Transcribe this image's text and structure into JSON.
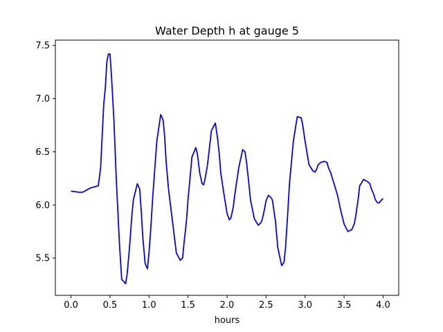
{
  "chart_data": {
    "type": "line",
    "title": "Water Depth h at gauge 5",
    "xlabel": "hours",
    "ylabel": "",
    "xlim": [
      -0.2,
      4.2
    ],
    "ylim": [
      5.15,
      7.55
    ],
    "grid": false,
    "x_ticks": [
      0.0,
      0.5,
      1.0,
      1.5,
      2.0,
      2.5,
      3.0,
      3.5,
      4.0
    ],
    "x_tick_labels": [
      "0.0",
      "0.5",
      "1.0",
      "1.5",
      "2.0",
      "2.5",
      "3.0",
      "3.5",
      "4.0"
    ],
    "y_ticks": [
      5.5,
      6.0,
      6.5,
      7.0,
      7.5
    ],
    "y_tick_labels": [
      "5.5",
      "6.0",
      "6.5",
      "7.0",
      "7.5"
    ],
    "series": [
      {
        "color": "#0000ff",
        "x": [
          0.0,
          0.05,
          0.1,
          0.15,
          0.2,
          0.25,
          0.3,
          0.35,
          0.38,
          0.42,
          0.44,
          0.46,
          0.48,
          0.5,
          0.52,
          0.55,
          0.58,
          0.62,
          0.65,
          0.7,
          0.72,
          0.75,
          0.78,
          0.8,
          0.85,
          0.88,
          0.9,
          0.92,
          0.95,
          0.98,
          1.0,
          1.02,
          1.05,
          1.1,
          1.15,
          1.18,
          1.2,
          1.22,
          1.25,
          1.3,
          1.35,
          1.4,
          1.43,
          1.45,
          1.48,
          1.5,
          1.55,
          1.6,
          1.62,
          1.65,
          1.68,
          1.7,
          1.72,
          1.75,
          1.8,
          1.85,
          1.88,
          1.9,
          1.92,
          1.95,
          2.0,
          2.03,
          2.05,
          2.08,
          2.1,
          2.15,
          2.2,
          2.23,
          2.25,
          2.28,
          2.3,
          2.35,
          2.4,
          2.43,
          2.45,
          2.48,
          2.5,
          2.53,
          2.55,
          2.58,
          2.6,
          2.62,
          2.65,
          2.7,
          2.73,
          2.75,
          2.78,
          2.8,
          2.85,
          2.9,
          2.95,
          2.97,
          3.0,
          3.05,
          3.1,
          3.13,
          3.15,
          3.17,
          3.2,
          3.25,
          3.28,
          3.3,
          3.33,
          3.35,
          3.38,
          3.42,
          3.45,
          3.5,
          3.55,
          3.6,
          3.63,
          3.65,
          3.68,
          3.7,
          3.75,
          3.8,
          3.83,
          3.85,
          3.88,
          3.9,
          3.93,
          3.95,
          3.97,
          4.0
        ],
        "values": [
          6.13,
          6.125,
          6.12,
          6.12,
          6.14,
          6.16,
          6.17,
          6.18,
          6.35,
          6.95,
          7.1,
          7.35,
          7.42,
          7.42,
          7.2,
          6.8,
          6.25,
          5.65,
          5.3,
          5.26,
          5.35,
          5.6,
          5.9,
          6.05,
          6.2,
          6.15,
          5.95,
          5.7,
          5.45,
          5.4,
          5.55,
          5.75,
          6.1,
          6.6,
          6.85,
          6.8,
          6.65,
          6.4,
          6.15,
          5.85,
          5.55,
          5.48,
          5.5,
          5.65,
          5.85,
          6.05,
          6.45,
          6.54,
          6.48,
          6.3,
          6.2,
          6.19,
          6.25,
          6.38,
          6.7,
          6.77,
          6.62,
          6.48,
          6.3,
          6.15,
          5.92,
          5.86,
          5.88,
          5.98,
          6.1,
          6.35,
          6.52,
          6.5,
          6.4,
          6.2,
          6.05,
          5.87,
          5.81,
          5.83,
          5.86,
          5.96,
          6.04,
          6.09,
          6.08,
          6.05,
          5.95,
          5.85,
          5.6,
          5.43,
          5.46,
          5.6,
          5.95,
          6.2,
          6.6,
          6.83,
          6.82,
          6.75,
          6.6,
          6.38,
          6.32,
          6.31,
          6.34,
          6.38,
          6.4,
          6.41,
          6.4,
          6.35,
          6.3,
          6.25,
          6.18,
          6.08,
          5.97,
          5.82,
          5.75,
          5.77,
          5.82,
          5.9,
          6.05,
          6.18,
          6.24,
          6.22,
          6.2,
          6.15,
          6.1,
          6.05,
          6.02,
          6.02,
          6.04,
          6.06
        ]
      }
    ]
  }
}
